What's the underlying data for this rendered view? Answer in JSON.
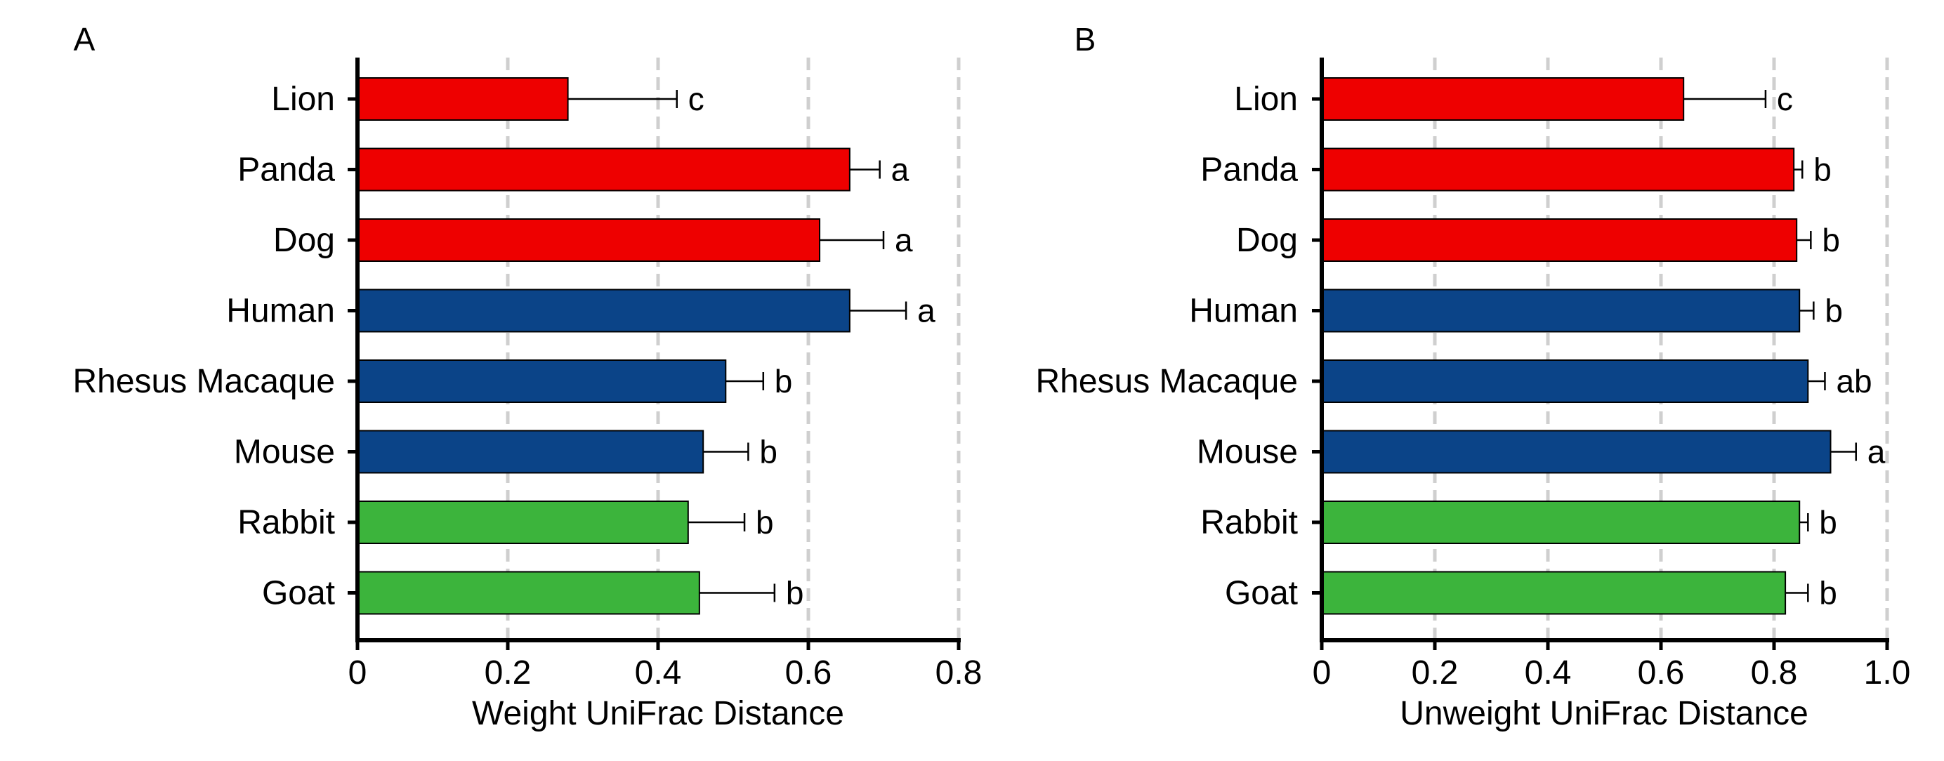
{
  "chart_data": [
    {
      "panel_label": "A",
      "type": "bar",
      "orientation": "horizontal",
      "xlabel": "Weight UniFrac Distance",
      "xlim": [
        0,
        0.8
      ],
      "xticks": [
        0,
        0.2,
        0.4,
        0.6,
        0.8
      ],
      "tick_labels": [
        "0",
        "0.2",
        "0.4",
        "0.6",
        "0.8"
      ],
      "grid": "vertical dashed",
      "categories": [
        "Lion",
        "Panda",
        "Dog",
        "Human",
        "Rhesus Macaque",
        "Mouse",
        "Rabbit",
        "Goat"
      ],
      "values": [
        0.28,
        0.655,
        0.615,
        0.655,
        0.49,
        0.46,
        0.44,
        0.455
      ],
      "errors": [
        0.145,
        0.04,
        0.085,
        0.075,
        0.05,
        0.06,
        0.075,
        0.1
      ],
      "significance": [
        "c",
        "a",
        "a",
        "a",
        "b",
        "b",
        "b",
        "b"
      ],
      "bar_colors": [
        "#ee0000",
        "#ee0000",
        "#ee0000",
        "#0b4488",
        "#0b4488",
        "#0b4488",
        "#3cb43c",
        "#3cb43c"
      ]
    },
    {
      "panel_label": "B",
      "type": "bar",
      "orientation": "horizontal",
      "xlabel": "Unweight UniFrac Distance",
      "xlim": [
        0,
        1.0
      ],
      "xticks": [
        0,
        0.2,
        0.4,
        0.6,
        0.8,
        1.0
      ],
      "tick_labels": [
        "0",
        "0.2",
        "0.4",
        "0.6",
        "0.8",
        "1.0"
      ],
      "grid": "vertical dashed",
      "categories": [
        "Lion",
        "Panda",
        "Dog",
        "Human",
        "Rhesus Macaque",
        "Mouse",
        "Rabbit",
        "Goat"
      ],
      "values": [
        0.64,
        0.835,
        0.84,
        0.845,
        0.86,
        0.9,
        0.845,
        0.82
      ],
      "errors": [
        0.145,
        0.015,
        0.025,
        0.025,
        0.03,
        0.045,
        0.015,
        0.04
      ],
      "significance": [
        "c",
        "b",
        "b",
        "b",
        "ab",
        "a",
        "b",
        "b"
      ],
      "bar_colors": [
        "#ee0000",
        "#ee0000",
        "#ee0000",
        "#0b4488",
        "#0b4488",
        "#0b4488",
        "#3cb43c",
        "#3cb43c"
      ]
    }
  ]
}
